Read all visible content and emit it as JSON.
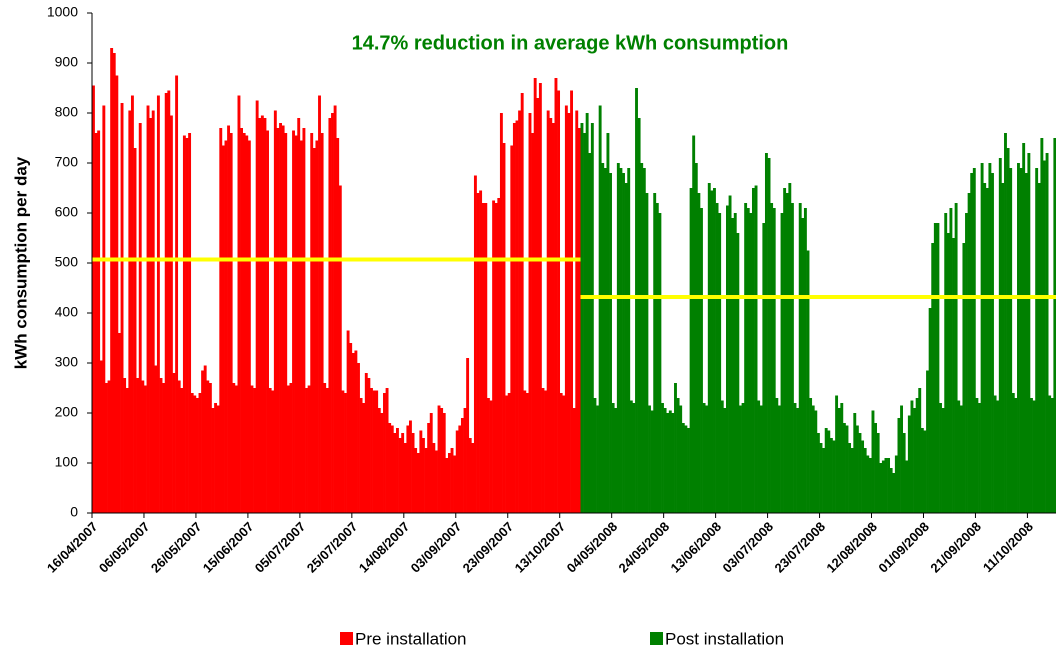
{
  "chart_data": {
    "type": "bar",
    "title": "14.7% reduction in average kWh consumption",
    "y_label": "kWh consumption per day",
    "ylim": [
      0,
      1000
    ],
    "yticks": [
      0,
      100,
      200,
      300,
      400,
      500,
      600,
      700,
      800,
      900,
      1000
    ],
    "grid": false,
    "legend": "bottom",
    "categories": [
      "16/04/2007",
      null,
      null,
      null,
      null,
      null,
      null,
      null,
      null,
      null,
      null,
      null,
      null,
      null,
      null,
      null,
      null,
      null,
      null,
      null,
      "06/05/2007",
      null,
      null,
      null,
      null,
      null,
      null,
      null,
      null,
      null,
      null,
      null,
      null,
      null,
      null,
      null,
      null,
      null,
      null,
      null,
      "26/05/2007",
      null,
      null,
      null,
      null,
      null,
      null,
      null,
      null,
      null,
      null,
      null,
      null,
      null,
      null,
      null,
      null,
      null,
      null,
      null,
      "15/06/2007",
      null,
      null,
      null,
      null,
      null,
      null,
      null,
      null,
      null,
      null,
      null,
      null,
      null,
      null,
      null,
      null,
      null,
      null,
      null,
      "05/07/2007",
      null,
      null,
      null,
      null,
      null,
      null,
      null,
      null,
      null,
      null,
      null,
      null,
      null,
      null,
      null,
      null,
      null,
      null,
      null,
      "25/07/2007",
      null,
      null,
      null,
      null,
      null,
      null,
      null,
      null,
      null,
      null,
      null,
      null,
      null,
      null,
      null,
      null,
      null,
      null,
      null,
      "14/08/2007",
      null,
      null,
      null,
      null,
      null,
      null,
      null,
      null,
      null,
      null,
      null,
      null,
      null,
      null,
      null,
      null,
      null,
      null,
      null,
      "03/09/2007",
      null,
      null,
      null,
      null,
      null,
      null,
      null,
      null,
      null,
      null,
      null,
      null,
      null,
      null,
      null,
      null,
      null,
      null,
      null,
      "23/09/2007",
      null,
      null,
      null,
      null,
      null,
      null,
      null,
      null,
      null,
      null,
      null,
      null,
      null,
      null,
      null,
      null,
      null,
      null,
      null,
      "13/10/2007",
      null,
      null,
      null,
      null,
      null,
      null,
      null,
      null,
      null,
      null,
      null,
      null,
      null,
      null,
      null,
      null,
      null,
      null,
      null,
      "04/05/2008",
      null,
      null,
      null,
      null,
      null,
      null,
      null,
      null,
      null,
      null,
      null,
      null,
      null,
      null,
      null,
      null,
      null,
      null,
      null,
      "24/05/2008",
      null,
      null,
      null,
      null,
      null,
      null,
      null,
      null,
      null,
      null,
      null,
      null,
      null,
      null,
      null,
      null,
      null,
      null,
      null,
      "13/06/2008",
      null,
      null,
      null,
      null,
      null,
      null,
      null,
      null,
      null,
      null,
      null,
      null,
      null,
      null,
      null,
      null,
      null,
      null,
      null,
      "03/07/2008",
      null,
      null,
      null,
      null,
      null,
      null,
      null,
      null,
      null,
      null,
      null,
      null,
      null,
      null,
      null,
      null,
      null,
      null,
      null,
      "23/07/2008",
      null,
      null,
      null,
      null,
      null,
      null,
      null,
      null,
      null,
      null,
      null,
      null,
      null,
      null,
      null,
      null,
      null,
      null,
      null,
      "12/08/2008",
      null,
      null,
      null,
      null,
      null,
      null,
      null,
      null,
      null,
      null,
      null,
      null,
      null,
      null,
      null,
      null,
      null,
      null,
      null,
      "01/09/2008",
      null,
      null,
      null,
      null,
      null,
      null,
      null,
      null,
      null,
      null,
      null,
      null,
      null,
      null,
      null,
      null,
      null,
      null,
      null,
      "21/09/2008",
      null,
      null,
      null,
      null,
      null,
      null,
      null,
      null,
      null,
      null,
      null,
      null,
      null,
      null,
      null,
      null,
      null,
      null,
      null,
      "11/10/2008",
      null,
      null,
      null,
      null,
      null,
      null,
      null,
      null,
      null,
      null
    ],
    "series": [
      {
        "name": "Pre installation",
        "color": "#ff0000",
        "average": 507,
        "values": [
          855,
          760,
          765,
          305,
          815,
          260,
          265,
          930,
          920,
          875,
          360,
          820,
          270,
          250,
          805,
          835,
          730,
          270,
          780,
          265,
          255,
          815,
          790,
          805,
          295,
          835,
          270,
          260,
          840,
          845,
          795,
          280,
          875,
          265,
          250,
          755,
          750,
          760,
          240,
          235,
          230,
          240,
          285,
          295,
          265,
          260,
          210,
          220,
          215,
          770,
          735,
          745,
          775,
          760,
          260,
          255,
          835,
          770,
          760,
          755,
          745,
          255,
          250,
          825,
          790,
          795,
          790,
          765,
          250,
          245,
          805,
          770,
          780,
          775,
          760,
          255,
          260,
          765,
          755,
          790,
          745,
          770,
          250,
          255,
          760,
          730,
          745,
          835,
          760,
          260,
          250,
          790,
          800,
          815,
          750,
          655,
          245,
          240,
          365,
          340,
          320,
          325,
          300,
          230,
          220,
          280,
          270,
          250,
          245,
          245,
          210,
          200,
          240,
          250,
          180,
          175,
          160,
          170,
          150,
          160,
          140,
          175,
          185,
          160,
          130,
          120,
          165,
          150,
          130,
          180,
          200,
          140,
          125,
          215,
          210,
          200,
          110,
          120,
          130,
          115,
          165,
          175,
          190,
          210,
          310,
          150,
          140,
          675,
          640,
          645,
          620,
          620,
          230,
          225,
          625,
          620,
          630,
          800,
          740,
          235,
          240,
          735,
          780,
          785,
          805,
          840,
          245,
          240,
          800,
          760,
          870,
          830,
          860,
          250,
          245,
          805,
          790,
          780,
          870,
          845,
          240,
          235,
          815,
          800,
          845,
          210,
          805,
          770,
          null,
          null,
          null,
          null,
          null,
          null,
          null,
          null,
          null,
          null,
          null,
          null,
          null,
          null,
          null,
          null,
          null,
          null,
          null,
          null,
          null,
          null,
          null,
          null,
          null,
          null,
          null,
          null,
          null,
          null,
          null,
          null,
          null,
          null,
          null,
          null,
          null,
          null,
          null,
          null,
          null,
          null,
          null,
          null,
          null,
          null,
          null,
          null,
          null,
          null,
          null,
          null,
          null,
          null,
          null,
          null,
          null,
          null,
          null,
          null,
          null,
          null,
          null,
          null,
          null,
          null,
          null,
          null,
          null,
          null,
          null,
          null,
          null,
          null,
          null,
          null,
          null,
          null,
          null,
          null,
          null,
          null,
          null,
          null,
          null,
          null,
          null,
          null,
          null,
          null,
          null,
          null,
          null,
          null,
          null,
          null,
          null,
          null,
          null,
          null,
          null,
          null,
          null,
          null,
          null,
          null,
          null,
          null,
          null,
          null,
          null,
          null,
          null,
          null,
          null,
          null,
          null,
          null,
          null,
          null,
          null,
          null,
          null,
          null,
          null,
          null,
          null,
          null,
          null,
          null,
          null,
          null,
          null,
          null,
          null,
          null,
          null,
          null,
          null,
          null,
          null,
          null,
          null,
          null,
          null,
          null,
          null,
          null,
          null,
          null,
          null,
          null,
          null,
          null,
          null,
          null,
          null,
          null,
          null,
          null,
          null,
          null,
          null,
          null,
          null,
          null,
          null,
          null,
          null,
          null,
          null,
          null,
          null,
          null,
          null,
          null,
          null,
          null,
          null,
          null,
          null,
          null,
          null
        ]
      },
      {
        "name": "Post installation",
        "color": "#008000",
        "average": 432,
        "values": [
          null,
          null,
          null,
          null,
          null,
          null,
          null,
          null,
          null,
          null,
          null,
          null,
          null,
          null,
          null,
          null,
          null,
          null,
          null,
          null,
          null,
          null,
          null,
          null,
          null,
          null,
          null,
          null,
          null,
          null,
          null,
          null,
          null,
          null,
          null,
          null,
          null,
          null,
          null,
          null,
          null,
          null,
          null,
          null,
          null,
          null,
          null,
          null,
          null,
          null,
          null,
          null,
          null,
          null,
          null,
          null,
          null,
          null,
          null,
          null,
          null,
          null,
          null,
          null,
          null,
          null,
          null,
          null,
          null,
          null,
          null,
          null,
          null,
          null,
          null,
          null,
          null,
          null,
          null,
          null,
          null,
          null,
          null,
          null,
          null,
          null,
          null,
          null,
          null,
          null,
          null,
          null,
          null,
          null,
          null,
          null,
          null,
          null,
          null,
          null,
          null,
          null,
          null,
          null,
          null,
          null,
          null,
          null,
          null,
          null,
          null,
          null,
          null,
          null,
          null,
          null,
          null,
          null,
          null,
          null,
          null,
          null,
          null,
          null,
          null,
          null,
          null,
          null,
          null,
          null,
          null,
          null,
          null,
          null,
          null,
          null,
          null,
          null,
          null,
          null,
          null,
          null,
          null,
          null,
          null,
          null,
          null,
          null,
          null,
          null,
          null,
          null,
          null,
          null,
          null,
          null,
          null,
          null,
          null,
          null,
          null,
          null,
          null,
          null,
          null,
          null,
          null,
          null,
          null,
          null,
          null,
          null,
          null,
          null,
          null,
          null,
          null,
          null,
          null,
          null,
          null,
          null,
          null,
          null,
          null,
          null,
          null,
          null,
          780,
          760,
          800,
          720,
          780,
          230,
          215,
          815,
          700,
          690,
          760,
          680,
          220,
          210,
          700,
          690,
          680,
          660,
          690,
          225,
          220,
          850,
          790,
          700,
          690,
          640,
          215,
          205,
          640,
          620,
          600,
          220,
          210,
          200,
          205,
          200,
          260,
          230,
          215,
          180,
          175,
          170,
          650,
          755,
          700,
          640,
          610,
          220,
          215,
          660,
          645,
          650,
          620,
          600,
          225,
          210,
          615,
          635,
          590,
          600,
          560,
          215,
          220,
          620,
          610,
          600,
          650,
          655,
          225,
          215,
          580,
          720,
          710,
          620,
          610,
          230,
          215,
          600,
          650,
          640,
          660,
          620,
          220,
          210,
          620,
          590,
          610,
          525,
          230,
          215,
          205,
          160,
          140,
          130,
          170,
          165,
          150,
          145,
          235,
          210,
          220,
          180,
          175,
          140,
          130,
          200,
          175,
          160,
          145,
          130,
          115,
          110,
          205,
          180,
          160,
          100,
          105,
          110,
          110,
          90,
          80,
          115,
          190,
          215,
          160,
          105,
          195,
          225,
          210,
          230,
          250,
          170,
          165,
          285,
          410,
          540,
          580,
          580,
          220,
          210,
          600,
          560,
          610,
          550,
          620,
          225,
          215,
          540,
          600,
          640,
          680,
          690,
          230,
          220,
          700,
          660,
          650,
          700,
          680,
          235,
          225,
          710,
          660,
          760,
          730,
          690,
          240,
          230,
          700,
          690,
          740,
          680,
          720,
          230,
          225,
          690,
          660,
          750,
          705,
          720,
          235,
          230,
          750
        ]
      }
    ]
  }
}
